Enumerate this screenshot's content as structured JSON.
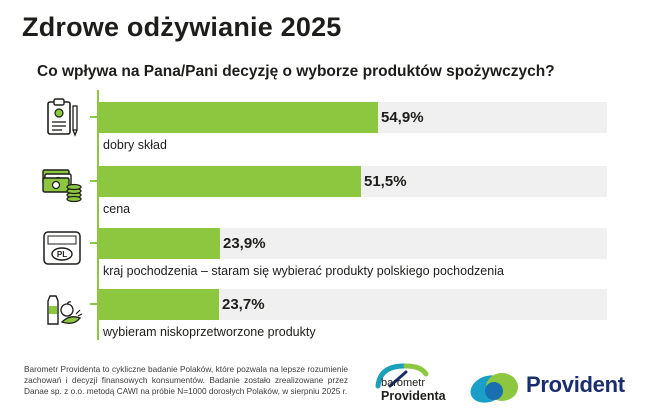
{
  "title": "Zdrowe odżywianie 2025",
  "question": "Co wpływa na Pana/Pani decyzję o wyborze produktów spożywczych?",
  "colors": {
    "bar": "#8dc63f",
    "track": "#f0f0f0",
    "text": "#1d1d1b",
    "brand_blue": "#1a2e6e"
  },
  "chart_data": {
    "type": "bar",
    "orientation": "horizontal",
    "title": "Co wpływa na Pana/Pani decyzję o wyborze produktów spożywczych?",
    "categories": [
      "dobry skład",
      "cena",
      "kraj pochodzenia – staram się wybierać produkty polskiego pochodzenia",
      "wybieram niskoprzetworzone produkty"
    ],
    "values": [
      54.9,
      51.5,
      23.9,
      23.7
    ],
    "value_labels": [
      "54,9%",
      "51,5%",
      "23,9%",
      "23,7%"
    ],
    "icons": [
      "recipe-clipboard-icon",
      "money-coins-icon",
      "pl-label-icon",
      "milk-vegetables-icon"
    ],
    "xlim": [
      0,
      100
    ],
    "grid": false
  },
  "footnote": "Barometr Providenta to cykliczne badanie Polaków, które pozwala na lepsze rozumienie zachowań i decyzji finansowych konsumentów. Badanie zostało zrealizowane przez Danae sp. z o.o. metodą CAWI na próbie N=1000 dorosłych Polaków, w sierpniu 2025 r.",
  "logos": {
    "barometr_line1": "barometr",
    "barometr_line2": "Providenta",
    "provident": "Provident"
  }
}
